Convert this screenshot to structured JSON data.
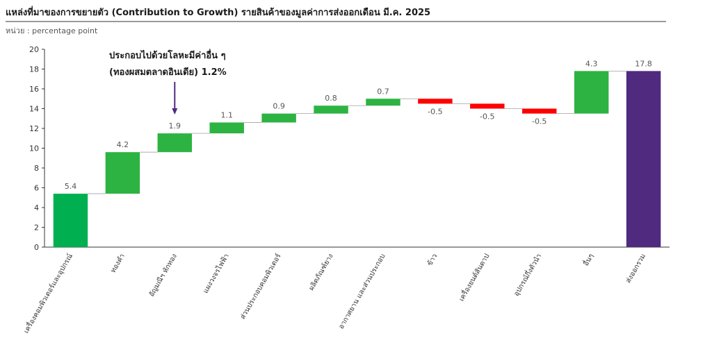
{
  "chart_data": {
    "type": "bar",
    "subtype": "waterfall",
    "title": "แหล่งที่มาของการขยายตัว (Contribution to Growth) รายสินค้าของมูลค่าการส่งออกเดือน มี.ค. 2025",
    "unit_label": "หน่วย : percentage point",
    "ylim": [
      0,
      20
    ],
    "yticks": [
      0,
      2,
      4,
      6,
      8,
      10,
      12,
      14,
      16,
      18,
      20
    ],
    "grid": false,
    "categories": [
      "เครื่องคอมพิวเตอร์และอุปกรณ์",
      "ทองคำ",
      "อัญมณีฯ หักทอง",
      "แผงวงจรไฟฟ้า",
      "ส่วนประกอบคอมพิวเตอร์",
      "ผลิตภัณฑ์ยาง",
      "อากาศยาน และส่วนประกอบ",
      "ข้าว",
      "เครื่องยนต์สันดาป",
      "อุปกรณ์กึ่งตัวนำ",
      "อื่นๆ",
      "ส่งออกรวม"
    ],
    "values": [
      5.4,
      4.2,
      1.9,
      1.1,
      0.9,
      0.8,
      0.7,
      -0.5,
      -0.5,
      -0.5,
      4.3,
      17.8
    ],
    "value_labels": [
      "5.4",
      "4.2",
      "1.9",
      "1.1",
      "0.9",
      "0.8",
      "0.7",
      "-0.5",
      "-0.5",
      "-0.5",
      "4.3",
      "17.8"
    ],
    "bar_kind": [
      "delta",
      "delta",
      "delta",
      "delta",
      "delta",
      "delta",
      "delta",
      "delta",
      "delta",
      "delta",
      "delta",
      "total"
    ],
    "colors": {
      "first": "#00b050",
      "positive": "#2db342",
      "negative": "#ff0000",
      "total": "#4f2a7f",
      "connector": "#a0a0a0",
      "annotation_arrow": "#4f2a7f"
    },
    "annotation": {
      "line1": "ประกอบไปด้วยโลหะมีค่าอื่น ๆ",
      "line2": "(ทองผสมตลาดอินเดีย) 1.2%",
      "target_category_index": 2
    }
  }
}
